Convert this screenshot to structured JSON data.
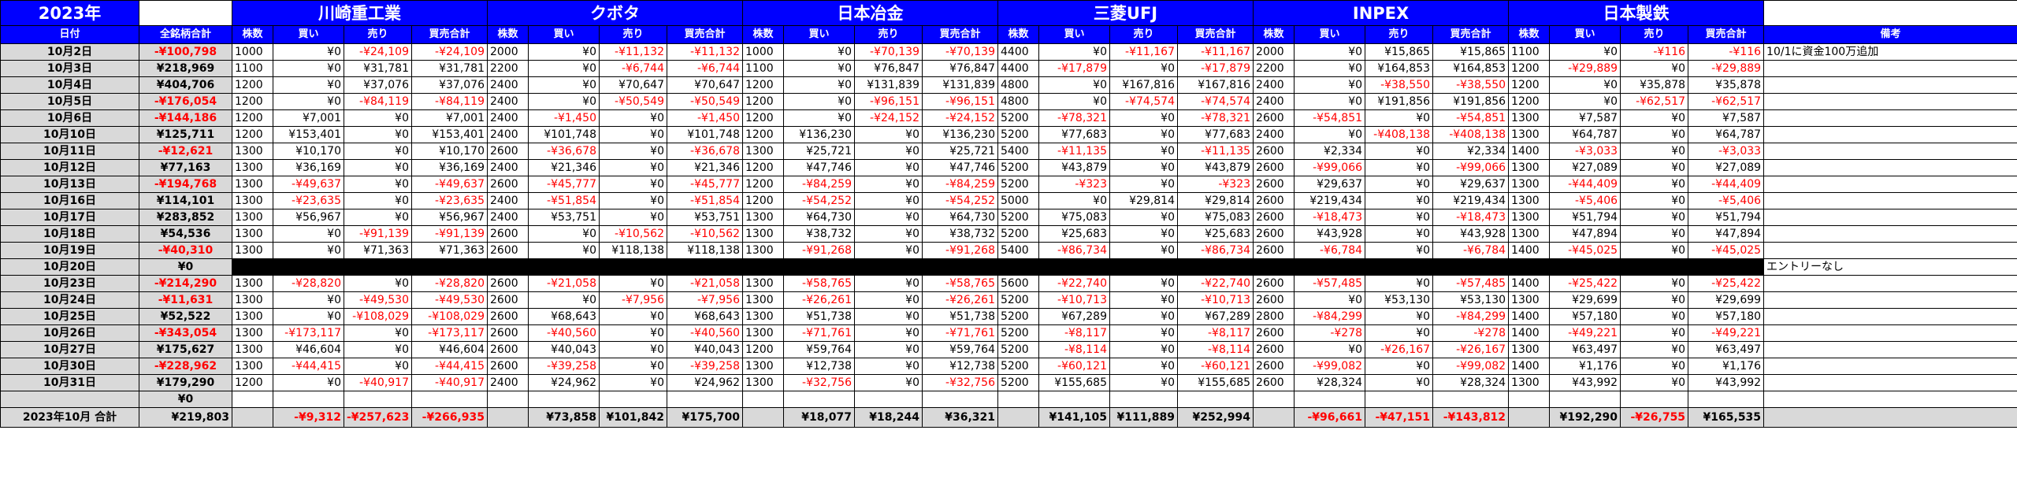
{
  "year_label": "2023年",
  "headers": {
    "date": "日付",
    "total": "全銘柄合計",
    "note": "備考"
  },
  "sub_headers": [
    "株数",
    "買い",
    "売り",
    "買売合計"
  ],
  "stocks": [
    "川崎重工業",
    "クボタ",
    "日本冶金",
    "三菱UFJ",
    "INPEX",
    "日本製鉄"
  ],
  "rows": [
    {
      "date": "10月2日",
      "total": "-¥100,798",
      "stocks": [
        [
          "1000",
          "¥0",
          "-¥24,109",
          "-¥24,109"
        ],
        [
          "2000",
          "¥0",
          "-¥11,132",
          "-¥11,132"
        ],
        [
          "1000",
          "¥0",
          "-¥70,139",
          "-¥70,139"
        ],
        [
          "4400",
          "¥0",
          "-¥11,167",
          "-¥11,167"
        ],
        [
          "2000",
          "¥0",
          "¥15,865",
          "¥15,865"
        ],
        [
          "1100",
          "¥0",
          "-¥116",
          "-¥116"
        ]
      ],
      "note": "10/1に資金100万追加"
    },
    {
      "date": "10月3日",
      "total": "¥218,969",
      "stocks": [
        [
          "1100",
          "¥0",
          "¥31,781",
          "¥31,781"
        ],
        [
          "2200",
          "¥0",
          "-¥6,744",
          "-¥6,744"
        ],
        [
          "1100",
          "¥0",
          "¥76,847",
          "¥76,847"
        ],
        [
          "4400",
          "-¥17,879",
          "¥0",
          "-¥17,879"
        ],
        [
          "2200",
          "¥0",
          "¥164,853",
          "¥164,853"
        ],
        [
          "1200",
          "-¥29,889",
          "¥0",
          "-¥29,889"
        ]
      ],
      "note": ""
    },
    {
      "date": "10月4日",
      "total": "¥404,706",
      "stocks": [
        [
          "1200",
          "¥0",
          "¥37,076",
          "¥37,076"
        ],
        [
          "2400",
          "¥0",
          "¥70,647",
          "¥70,647"
        ],
        [
          "1200",
          "¥0",
          "¥131,839",
          "¥131,839"
        ],
        [
          "4800",
          "¥0",
          "¥167,816",
          "¥167,816"
        ],
        [
          "2400",
          "¥0",
          "-¥38,550",
          "-¥38,550"
        ],
        [
          "1200",
          "¥0",
          "¥35,878",
          "¥35,878"
        ]
      ],
      "note": ""
    },
    {
      "date": "10月5日",
      "total": "-¥176,054",
      "stocks": [
        [
          "1200",
          "¥0",
          "-¥84,119",
          "-¥84,119"
        ],
        [
          "2400",
          "¥0",
          "-¥50,549",
          "-¥50,549"
        ],
        [
          "1200",
          "¥0",
          "-¥96,151",
          "-¥96,151"
        ],
        [
          "4800",
          "¥0",
          "-¥74,574",
          "-¥74,574"
        ],
        [
          "2400",
          "¥0",
          "¥191,856",
          "¥191,856"
        ],
        [
          "1200",
          "¥0",
          "-¥62,517",
          "-¥62,517"
        ]
      ],
      "note": ""
    },
    {
      "date": "10月6日",
      "total": "-¥144,186",
      "stocks": [
        [
          "1200",
          "¥7,001",
          "¥0",
          "¥7,001"
        ],
        [
          "2400",
          "-¥1,450",
          "¥0",
          "-¥1,450"
        ],
        [
          "1200",
          "¥0",
          "-¥24,152",
          "-¥24,152"
        ],
        [
          "5200",
          "-¥78,321",
          "¥0",
          "-¥78,321"
        ],
        [
          "2600",
          "-¥54,851",
          "¥0",
          "-¥54,851"
        ],
        [
          "1300",
          "¥7,587",
          "¥0",
          "¥7,587"
        ]
      ],
      "note": ""
    },
    {
      "date": "10月10日",
      "total": "¥125,711",
      "stocks": [
        [
          "1200",
          "¥153,401",
          "¥0",
          "¥153,401"
        ],
        [
          "2400",
          "¥101,748",
          "¥0",
          "¥101,748"
        ],
        [
          "1200",
          "¥136,230",
          "¥0",
          "¥136,230"
        ],
        [
          "5200",
          "¥77,683",
          "¥0",
          "¥77,683"
        ],
        [
          "2400",
          "¥0",
          "-¥408,138",
          "-¥408,138"
        ],
        [
          "1300",
          "¥64,787",
          "¥0",
          "¥64,787"
        ]
      ],
      "note": ""
    },
    {
      "date": "10月11日",
      "total": "-¥12,621",
      "stocks": [
        [
          "1300",
          "¥10,170",
          "¥0",
          "¥10,170"
        ],
        [
          "2600",
          "-¥36,678",
          "¥0",
          "-¥36,678"
        ],
        [
          "1300",
          "¥25,721",
          "¥0",
          "¥25,721"
        ],
        [
          "5400",
          "-¥11,135",
          "¥0",
          "-¥11,135"
        ],
        [
          "2600",
          "¥2,334",
          "¥0",
          "¥2,334"
        ],
        [
          "1400",
          "-¥3,033",
          "¥0",
          "-¥3,033"
        ]
      ],
      "note": ""
    },
    {
      "date": "10月12日",
      "total": "¥77,163",
      "stocks": [
        [
          "1300",
          "¥36,169",
          "¥0",
          "¥36,169"
        ],
        [
          "2400",
          "¥21,346",
          "¥0",
          "¥21,346"
        ],
        [
          "1200",
          "¥47,746",
          "¥0",
          "¥47,746"
        ],
        [
          "5200",
          "¥43,879",
          "¥0",
          "¥43,879"
        ],
        [
          "2600",
          "-¥99,066",
          "¥0",
          "-¥99,066"
        ],
        [
          "1300",
          "¥27,089",
          "¥0",
          "¥27,089"
        ]
      ],
      "note": ""
    },
    {
      "date": "10月13日",
      "total": "-¥194,768",
      "stocks": [
        [
          "1300",
          "-¥49,637",
          "¥0",
          "-¥49,637"
        ],
        [
          "2600",
          "-¥45,777",
          "¥0",
          "-¥45,777"
        ],
        [
          "1200",
          "-¥84,259",
          "¥0",
          "-¥84,259"
        ],
        [
          "5200",
          "-¥323",
          "¥0",
          "-¥323"
        ],
        [
          "2600",
          "¥29,637",
          "¥0",
          "¥29,637"
        ],
        [
          "1300",
          "-¥44,409",
          "¥0",
          "-¥44,409"
        ]
      ],
      "note": ""
    },
    {
      "date": "10月16日",
      "total": "¥114,101",
      "stocks": [
        [
          "1300",
          "-¥23,635",
          "¥0",
          "-¥23,635"
        ],
        [
          "2400",
          "-¥51,854",
          "¥0",
          "-¥51,854"
        ],
        [
          "1200",
          "-¥54,252",
          "¥0",
          "-¥54,252"
        ],
        [
          "5000",
          "¥0",
          "¥29,814",
          "¥29,814"
        ],
        [
          "2600",
          "¥219,434",
          "¥0",
          "¥219,434"
        ],
        [
          "1300",
          "-¥5,406",
          "¥0",
          "-¥5,406"
        ]
      ],
      "note": ""
    },
    {
      "date": "10月17日",
      "total": "¥283,852",
      "stocks": [
        [
          "1300",
          "¥56,967",
          "¥0",
          "¥56,967"
        ],
        [
          "2400",
          "¥53,751",
          "¥0",
          "¥53,751"
        ],
        [
          "1300",
          "¥64,730",
          "¥0",
          "¥64,730"
        ],
        [
          "5200",
          "¥75,083",
          "¥0",
          "¥75,083"
        ],
        [
          "2600",
          "-¥18,473",
          "¥0",
          "-¥18,473"
        ],
        [
          "1300",
          "¥51,794",
          "¥0",
          "¥51,794"
        ]
      ],
      "note": ""
    },
    {
      "date": "10月18日",
      "total": "¥54,536",
      "stocks": [
        [
          "1300",
          "¥0",
          "-¥91,139",
          "-¥91,139"
        ],
        [
          "2600",
          "¥0",
          "-¥10,562",
          "-¥10,562"
        ],
        [
          "1300",
          "¥38,732",
          "¥0",
          "¥38,732"
        ],
        [
          "5200",
          "¥25,683",
          "¥0",
          "¥25,683"
        ],
        [
          "2600",
          "¥43,928",
          "¥0",
          "¥43,928"
        ],
        [
          "1300",
          "¥47,894",
          "¥0",
          "¥47,894"
        ]
      ],
      "note": ""
    },
    {
      "date": "10月19日",
      "total": "-¥40,310",
      "stocks": [
        [
          "1300",
          "¥0",
          "¥71,363",
          "¥71,363"
        ],
        [
          "2600",
          "¥0",
          "¥118,138",
          "¥118,138"
        ],
        [
          "1300",
          "-¥91,268",
          "¥0",
          "-¥91,268"
        ],
        [
          "5400",
          "-¥86,734",
          "¥0",
          "-¥86,734"
        ],
        [
          "2600",
          "-¥6,784",
          "¥0",
          "-¥6,784"
        ],
        [
          "1400",
          "-¥45,025",
          "¥0",
          "-¥45,025"
        ]
      ],
      "note": ""
    },
    {
      "date": "10月20日",
      "total": "¥0",
      "black": true,
      "note": "エントリーなし"
    },
    {
      "date": "10月23日",
      "total": "-¥214,290",
      "stocks": [
        [
          "1300",
          "-¥28,820",
          "¥0",
          "-¥28,820"
        ],
        [
          "2600",
          "-¥21,058",
          "¥0",
          "-¥21,058"
        ],
        [
          "1300",
          "-¥58,765",
          "¥0",
          "-¥58,765"
        ],
        [
          "5600",
          "-¥22,740",
          "¥0",
          "-¥22,740"
        ],
        [
          "2600",
          "-¥57,485",
          "¥0",
          "-¥57,485"
        ],
        [
          "1400",
          "-¥25,422",
          "¥0",
          "-¥25,422"
        ]
      ],
      "note": ""
    },
    {
      "date": "10月24日",
      "total": "-¥11,631",
      "stocks": [
        [
          "1300",
          "¥0",
          "-¥49,530",
          "-¥49,530"
        ],
        [
          "2600",
          "¥0",
          "-¥7,956",
          "-¥7,956"
        ],
        [
          "1300",
          "-¥26,261",
          "¥0",
          "-¥26,261"
        ],
        [
          "5200",
          "-¥10,713",
          "¥0",
          "-¥10,713"
        ],
        [
          "2600",
          "¥0",
          "¥53,130",
          "¥53,130"
        ],
        [
          "1300",
          "¥29,699",
          "¥0",
          "¥29,699"
        ]
      ],
      "note": ""
    },
    {
      "date": "10月25日",
      "total": "¥52,522",
      "stocks": [
        [
          "1300",
          "¥0",
          "-¥108,029",
          "-¥108,029"
        ],
        [
          "2600",
          "¥68,643",
          "¥0",
          "¥68,643"
        ],
        [
          "1300",
          "¥51,738",
          "¥0",
          "¥51,738"
        ],
        [
          "5200",
          "¥67,289",
          "¥0",
          "¥67,289"
        ],
        [
          "2800",
          "-¥84,299",
          "¥0",
          "-¥84,299"
        ],
        [
          "1400",
          "¥57,180",
          "¥0",
          "¥57,180"
        ]
      ],
      "note": ""
    },
    {
      "date": "10月26日",
      "total": "-¥343,054",
      "stocks": [
        [
          "1300",
          "-¥173,117",
          "¥0",
          "-¥173,117"
        ],
        [
          "2600",
          "-¥40,560",
          "¥0",
          "-¥40,560"
        ],
        [
          "1300",
          "-¥71,761",
          "¥0",
          "-¥71,761"
        ],
        [
          "5200",
          "-¥8,117",
          "¥0",
          "-¥8,117"
        ],
        [
          "2600",
          "-¥278",
          "¥0",
          "-¥278"
        ],
        [
          "1400",
          "-¥49,221",
          "¥0",
          "-¥49,221"
        ]
      ],
      "note": ""
    },
    {
      "date": "10月27日",
      "total": "¥175,627",
      "stocks": [
        [
          "1300",
          "¥46,604",
          "¥0",
          "¥46,604"
        ],
        [
          "2600",
          "¥40,043",
          "¥0",
          "¥40,043"
        ],
        [
          "1200",
          "¥59,764",
          "¥0",
          "¥59,764"
        ],
        [
          "5200",
          "-¥8,114",
          "¥0",
          "-¥8,114"
        ],
        [
          "2600",
          "¥0",
          "-¥26,167",
          "-¥26,167"
        ],
        [
          "1300",
          "¥63,497",
          "¥0",
          "¥63,497"
        ]
      ],
      "note": ""
    },
    {
      "date": "10月30日",
      "total": "-¥228,962",
      "stocks": [
        [
          "1300",
          "-¥44,415",
          "¥0",
          "-¥44,415"
        ],
        [
          "2600",
          "-¥39,258",
          "¥0",
          "-¥39,258"
        ],
        [
          "1300",
          "¥12,738",
          "¥0",
          "¥12,738"
        ],
        [
          "5200",
          "-¥60,121",
          "¥0",
          "-¥60,121"
        ],
        [
          "2600",
          "-¥99,082",
          "¥0",
          "-¥99,082"
        ],
        [
          "1400",
          "¥1,176",
          "¥0",
          "¥1,176"
        ]
      ],
      "note": ""
    },
    {
      "date": "10月31日",
      "total": "¥179,290",
      "stocks": [
        [
          "1200",
          "¥0",
          "-¥40,917",
          "-¥40,917"
        ],
        [
          "2400",
          "¥24,962",
          "¥0",
          "¥24,962"
        ],
        [
          "1300",
          "-¥32,756",
          "¥0",
          "-¥32,756"
        ],
        [
          "5200",
          "¥155,685",
          "¥0",
          "¥155,685"
        ],
        [
          "2600",
          "¥28,324",
          "¥0",
          "¥28,324"
        ],
        [
          "1300",
          "¥43,992",
          "¥0",
          "¥43,992"
        ]
      ],
      "note": ""
    },
    {
      "date": "",
      "total": "¥0",
      "empty": true,
      "note": ""
    }
  ],
  "summary": {
    "label": "2023年10月 合計",
    "total": "¥219,803",
    "stocks": [
      [
        "",
        "-¥9,312",
        "-¥257,623",
        "-¥266,935"
      ],
      [
        "",
        "¥73,858",
        "¥101,842",
        "¥175,700"
      ],
      [
        "",
        "¥18,077",
        "¥18,244",
        "¥36,321"
      ],
      [
        "",
        "¥141,105",
        "¥111,889",
        "¥252,994"
      ],
      [
        "",
        "-¥96,661",
        "-¥47,151",
        "-¥143,812"
      ],
      [
        "",
        "¥192,290",
        "-¥26,755",
        "¥165,535"
      ]
    ],
    "note": ""
  },
  "colors": {
    "header_bg": "#0000ff",
    "header_text": "#ffffff",
    "date_bg": "#d9d9d9",
    "negative": "#ff0000",
    "blank_row": "#000000"
  }
}
